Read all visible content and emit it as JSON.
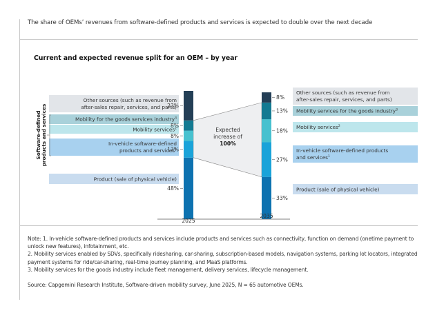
{
  "header": {
    "subtitle": "The share of OEMs’ revenues from software-defined products and services is expected to double over the next decade"
  },
  "chart_data": {
    "type": "bar",
    "stacked": true,
    "title": "Current and expected revenue split for an OEM – by year",
    "categories": [
      "2025",
      "2035"
    ],
    "series": [
      {
        "name": "Product (sale of physical vehicle)",
        "label_2025": "Product (sale of physical vehicle)",
        "label_2035": "Product (sale of physical vehicle)",
        "values": [
          48,
          33
        ],
        "color": "#0d72b0",
        "box_color": "#c9dcef"
      },
      {
        "name": "In-vehicle software-defined products and services",
        "label_2025": "In-vehicle software-defined products and services¹",
        "label_2035": "In-vehicle software-defined products and services¹",
        "values": [
          13,
          27
        ],
        "color": "#1aa3d9",
        "box_color": "#a8d1ef"
      },
      {
        "name": "Mobility services",
        "label_2025": "Mobility services²",
        "label_2035": "Mobility services²",
        "values": [
          8,
          18
        ],
        "color": "#47c1cf",
        "box_color": "#bde6ec"
      },
      {
        "name": "Mobility for the goods services industry",
        "label_2025": "Mobility for the goods services industry³",
        "label_2035": "Mobility services for the goods industry³",
        "values": [
          8,
          13
        ],
        "color": "#137a92",
        "box_color": "#a9d1da"
      },
      {
        "name": "Other sources (such as revenue from after-sales repair, services, and parts)",
        "label_2025": "Other sources (such as revenue from after-sales repair, services, and parts)",
        "label_2035": "Other sources (such as revenue from after-sales repair, services, and parts)",
        "values": [
          23,
          8
        ],
        "color": "#243f56",
        "box_color": "#e2e5e9"
      }
    ],
    "value_labels": {
      "2025": [
        "48%",
        "13%",
        "8%",
        "8%",
        "23%"
      ],
      "2035": [
        "33%",
        "27%",
        "18%",
        "13%",
        "8%"
      ]
    },
    "bracket_label": "Software-defined products and services",
    "annotation": {
      "line1": "Expected",
      "line2": "increase of",
      "line3": "100%"
    },
    "xlabel": "",
    "ylabel": "",
    "ylim": [
      0,
      100
    ],
    "legend": "inline-labels-left-and-right",
    "grid": false
  },
  "left_labels": {
    "other_l1": "Other sources (such as revenue from",
    "other_l2": "after-sales repair, services, and parts)",
    "goods": "Mobility for the goods services industry",
    "goods_sup": "3",
    "mobility": "Mobility services",
    "mobility_sup": "2",
    "invehicle_l1": "In-vehicle software-defined",
    "invehicle_l2": "products and services",
    "invehicle_sup": "1",
    "product": "Product (sale of physical vehicle)",
    "bracket_l1": "Software-defined",
    "bracket_l2": "products and services"
  },
  "right_labels": {
    "other_l1": "Other sources (such as revenue from",
    "other_l2": "after-sales repair, services, and parts)",
    "goods": "Mobility services for the goods industry",
    "goods_sup": "3",
    "mobility": "Mobility services",
    "mobility_sup": "2",
    "invehicle_l1": "In-vehicle software-defined products",
    "invehicle_l2": "and services",
    "invehicle_sup": "1",
    "product": "Product (sale of physical vehicle)"
  },
  "notes": {
    "note1": "Note: 1. In-vehicle software-defined products and services include products and services such as connectivity, function on demand (onetime payment to unlock new features), infotainment, etc.",
    "note2": "2. Mobility services enabled by SDVs, specifically ridesharing, car-sharing, subscription-based models, navigation systems, parking lot locators, integrated payment systems for ride/car-sharing, real-time journey planning, and MaaS platforms.",
    "note3": "3. Mobility services for the goods industry include fleet management, delivery services, lifecycle management.",
    "source": "Source: Capgemini Research Institute, Software-driven mobility survey, June 2025, N = 65 automotive OEMs."
  }
}
